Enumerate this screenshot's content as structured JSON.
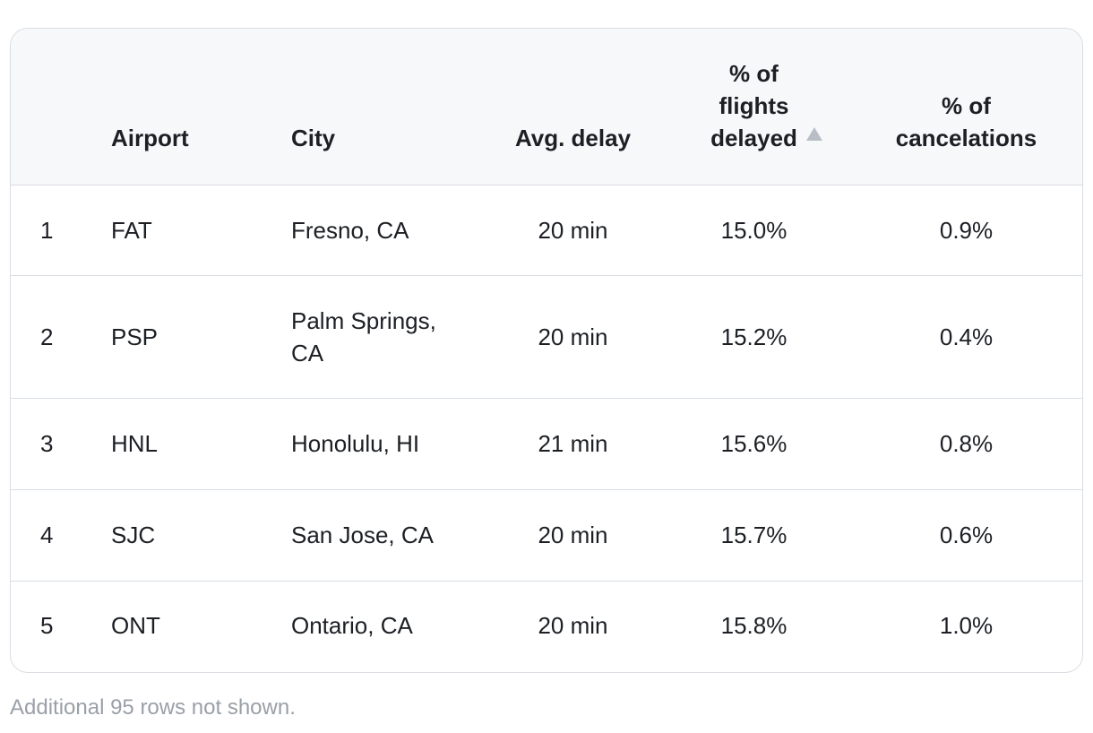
{
  "table": {
    "headers": {
      "rank": "",
      "airport": "Airport",
      "city": "City",
      "avg_delay": "Avg. delay",
      "pct_delayed_line1": "% of",
      "pct_delayed_line2": "flights",
      "pct_delayed_line3": "delayed",
      "pct_cancel_line1": "% of",
      "pct_cancel_line2": "cancelations"
    },
    "sort": {
      "column": "% of flights delayed",
      "direction": "ascending",
      "icon": "sort-ascending-icon"
    },
    "rows": [
      {
        "rank": "1",
        "airport": "FAT",
        "city_line1": "Fresno, CA",
        "city_line2": "",
        "avg_delay": "20 min",
        "pct_delayed": "15.0%",
        "pct_cancel": "0.9%"
      },
      {
        "rank": "2",
        "airport": "PSP",
        "city_line1": "Palm Springs,",
        "city_line2": "CA",
        "avg_delay": "20 min",
        "pct_delayed": "15.2%",
        "pct_cancel": "0.4%"
      },
      {
        "rank": "3",
        "airport": "HNL",
        "city_line1": "Honolulu, HI",
        "city_line2": "",
        "avg_delay": "21 min",
        "pct_delayed": "15.6%",
        "pct_cancel": "0.8%"
      },
      {
        "rank": "4",
        "airport": "SJC",
        "city_line1": "San Jose, CA",
        "city_line2": "",
        "avg_delay": "20 min",
        "pct_delayed": "15.7%",
        "pct_cancel": "0.6%"
      },
      {
        "rank": "5",
        "airport": "ONT",
        "city_line1": "Ontario, CA",
        "city_line2": "",
        "avg_delay": "20 min",
        "pct_delayed": "15.8%",
        "pct_cancel": "1.0%"
      }
    ]
  },
  "footnote": "Additional 95 rows not shown.",
  "colors": {
    "header_bg": "#f7f8fa",
    "border": "#d9dde2",
    "muted_text": "#9aa0a8",
    "sort_arrow": "#b9bec6"
  }
}
